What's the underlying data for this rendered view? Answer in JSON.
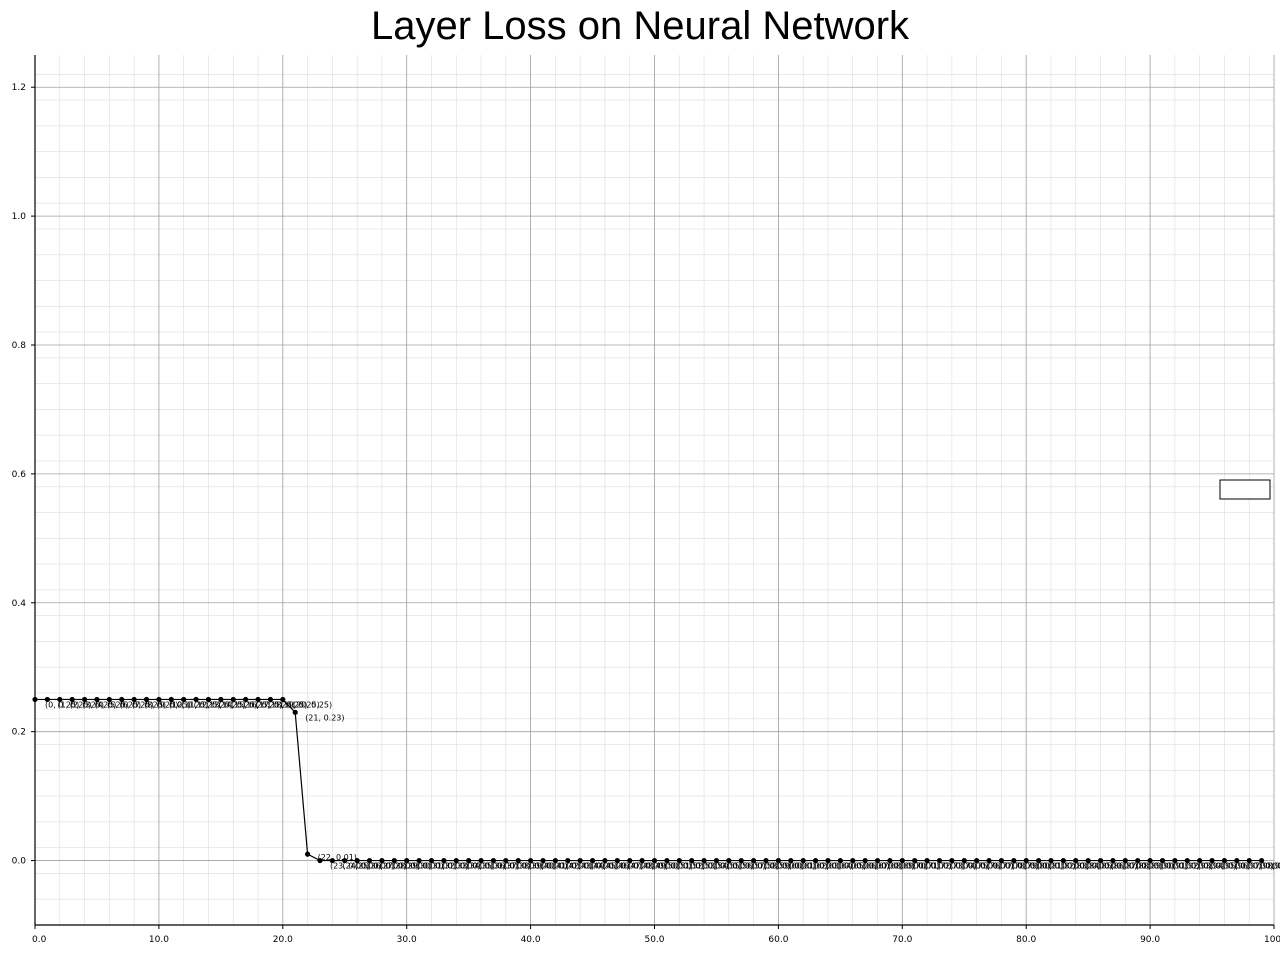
{
  "chart_data": {
    "type": "line",
    "title": "Layer Loss on Neural Network",
    "xlabel": "",
    "ylabel": "",
    "xlim": [
      0,
      100
    ],
    "ylim": [
      -0.1,
      1.25
    ],
    "x_ticks": [
      "0.0",
      "10.0",
      "20.0",
      "30.0",
      "40.0",
      "50.0",
      "60.0",
      "70.0",
      "80.0",
      "90.0",
      "100."
    ],
    "y_ticks": [
      "0.0",
      "0.2",
      "0.4",
      "0.6",
      "0.8",
      "1.0",
      "1.2"
    ],
    "grid": true,
    "legend_entries": [],
    "legend_placement": "right",
    "series": [
      {
        "x": [
          0,
          1,
          2,
          3,
          4,
          5,
          6,
          7,
          8,
          9,
          10,
          11,
          12,
          13,
          14,
          15,
          16,
          17,
          18,
          19,
          20,
          21,
          22,
          23,
          24,
          25,
          26,
          27,
          28,
          29,
          30,
          31,
          32,
          33,
          34,
          35,
          36,
          37,
          38,
          39,
          40,
          41,
          42,
          43,
          44,
          45,
          46,
          47,
          48,
          49,
          50,
          51,
          52,
          53,
          54,
          55,
          56,
          57,
          58,
          59,
          60,
          61,
          62,
          63,
          64,
          65,
          66,
          67,
          68,
          69,
          70,
          71,
          72,
          73,
          74,
          75,
          76,
          77,
          78,
          79,
          80,
          81,
          82,
          83,
          84,
          85,
          86,
          87,
          88,
          89,
          90,
          91,
          92,
          93,
          94,
          95,
          96,
          97,
          98,
          99
        ],
        "values": [
          0.25,
          0.25,
          0.25,
          0.25,
          0.25,
          0.25,
          0.25,
          0.25,
          0.25,
          0.25,
          0.25,
          0.25,
          0.25,
          0.25,
          0.25,
          0.25,
          0.25,
          0.25,
          0.25,
          0.25,
          0.25,
          0.23,
          0.01,
          0,
          0,
          0,
          0,
          0,
          0,
          0,
          0,
          0,
          0,
          0,
          0,
          0,
          0,
          0,
          0,
          0,
          0,
          0,
          0,
          0,
          0,
          0,
          0,
          0,
          0,
          0,
          0,
          0,
          0,
          0,
          0,
          0,
          0,
          0,
          0,
          0,
          0,
          0,
          0,
          0,
          0,
          0,
          0,
          0,
          0,
          0,
          0,
          0,
          0,
          0,
          0,
          0,
          0,
          0,
          0,
          0,
          0,
          0,
          0,
          0,
          0,
          0,
          0,
          0,
          0,
          0,
          0,
          0,
          0,
          0,
          0,
          0,
          0,
          0,
          0,
          0
        ],
        "point_labels": [
          "(0, 0.25)",
          "(1, 0.25)",
          "(2, 0.25)",
          "(3, 0.25)",
          "(4, 0.25)",
          "(5, 0.25)",
          "(6, 0.25)",
          "(7, 0.25)",
          "(8, 0.25)",
          "(9, 0.25)",
          "(10, 0.25)",
          "(11, 0.25)",
          "(12, 0.25)",
          "(13, 0.25)",
          "(14, 0.25)",
          "(15, 0.25)",
          "(16, 0.25)",
          "(17, 0.25)",
          "(18, 0.25)",
          "(19, 0.25)",
          "(20, 0.25)",
          "(21, 0.23)",
          "(22, 0.01)",
          "(23, 0.00)",
          "(24, 0.00)",
          "(25, 0.00)",
          "(26, 0.00)",
          "(27, 0.00)",
          "(28, 0.00)",
          "(29, 0.00)",
          "(30, 0.00)",
          "(31, 0.00)",
          "(32, 0.00)",
          "(33, 0.00)",
          "(34, 0.00)",
          "(35, 0.00)",
          "(36, 0.00)",
          "(37, 0.00)",
          "(38, 0.00)",
          "(39, 0.00)",
          "(40, 0.00)",
          "(41, 0.00)",
          "(42, 0.00)",
          "(43, 0.00)",
          "(44, 0.00)",
          "(45, 0.00)",
          "(46, 0.00)",
          "(47, 0.00)",
          "(48, 0.00)",
          "(49, 0.00)",
          "(50, 0.00)",
          "(51, 0.00)",
          "(52, 0.00)",
          "(53, 0.00)",
          "(54, 0.00)",
          "(55, 0.00)",
          "(56, 0.00)",
          "(57, 0.00)",
          "(58, 0.00)",
          "(59, 0.00)",
          "(60, 0.00)",
          "(61, 0.00)",
          "(62, 0.00)",
          "(63, 0.00)",
          "(64, 0.00)",
          "(65, 0.00)",
          "(66, 0.00)",
          "(67, 0.00)",
          "(68, 0.00)",
          "(69, 0.00)",
          "(70, 0.00)",
          "(71, 0.00)",
          "(72, 0.00)",
          "(73, 0.00)",
          "(74, 0.00)",
          "(75, 0.00)",
          "(76, 0.00)",
          "(77, 0.00)",
          "(78, 0.00)",
          "(79, 0.00)",
          "(80, 0.00)",
          "(81, 0.00)",
          "(82, 0.00)",
          "(83, 0.00)",
          "(84, 0.00)",
          "(85, 0.00)",
          "(86, 0.00)",
          "(87, 0.00)",
          "(88, 0.00)",
          "(89, 0.00)",
          "(90, 0.00)",
          "(91, 0.00)",
          "(92, 0.00)",
          "(93, 0.00)",
          "(94, 0.00)",
          "(95, 0.00)",
          "(96, 0.00)",
          "(97, 0.00)",
          "(98, 0.00)",
          "(99, 0.00)"
        ]
      }
    ],
    "colors": {
      "line": "#000000",
      "major_grid": "#a0a0a0",
      "minor_grid": "#dcdcdc",
      "axis": "#000000"
    }
  }
}
